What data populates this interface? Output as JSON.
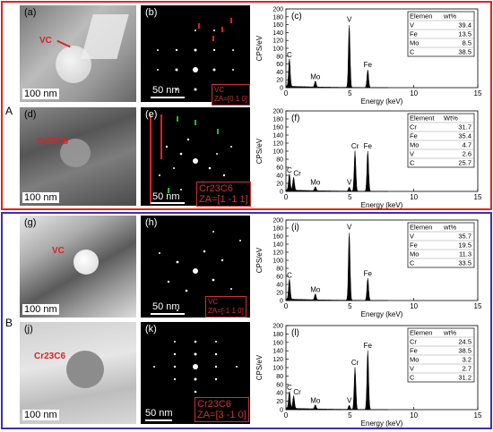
{
  "section_a": {
    "label": "A",
    "border_color": "#e0251d"
  },
  "section_b": {
    "label": "B",
    "border_color": "#3a2fb8"
  },
  "panels": {
    "a": {
      "label": "(a)",
      "phase": "VC",
      "scale": "100 nm"
    },
    "b": {
      "label": "(b)",
      "scale": "50 nm",
      "phase": "VC",
      "za": "ZA=[0 1 0]"
    },
    "d": {
      "label": "(d)",
      "phase": "Cr23C6",
      "scale": "100 nm"
    },
    "e": {
      "label": "(e)",
      "scale": "50 nm",
      "phase": "Cr23C6",
      "za": "ZA=[1 -1 1]"
    },
    "g": {
      "label": "(g)",
      "phase": "VC",
      "scale": "100 nm"
    },
    "h": {
      "label": "(h)",
      "scale": "50 nm",
      "phase": "VC",
      "za": "ZA=[-1 1 0]"
    },
    "j": {
      "label": "(j)",
      "phase": "Cr23C6",
      "scale": "100 nm"
    },
    "k": {
      "label": "(k)",
      "scale": "50 nm",
      "phase": "Cr23C6",
      "za": "ZA=[3 -1 0]"
    }
  },
  "chart_data": [
    {
      "id": "c",
      "label": "(c)",
      "type": "line",
      "xlabel": "Energy (keV)",
      "ylabel": "CPS/eV",
      "xlim": [
        0,
        15
      ],
      "ylim": [
        0,
        200
      ],
      "xticks": [
        0,
        5,
        10,
        15
      ],
      "yticks": [
        0,
        20,
        40,
        60,
        80,
        100,
        120,
        140,
        160,
        180,
        200
      ],
      "peaks": [
        {
          "x": 0.27,
          "y": 70,
          "label": "C"
        },
        {
          "x": 2.3,
          "y": 15,
          "label": "Mo"
        },
        {
          "x": 4.95,
          "y": 160,
          "label": "V"
        },
        {
          "x": 6.4,
          "y": 45,
          "label": "Fe"
        }
      ],
      "table": {
        "headers": [
          "Elemen",
          "wt%"
        ],
        "rows": [
          [
            "V",
            "39.4"
          ],
          [
            "Fe",
            "13.5"
          ],
          [
            "Mo",
            "8.5"
          ],
          [
            "C",
            "38.5"
          ]
        ]
      }
    },
    {
      "id": "f",
      "label": "(f)",
      "type": "line",
      "xlabel": "Energy (keV)",
      "ylabel": "CPS/eV",
      "xlim": [
        0,
        15
      ],
      "ylim": [
        0,
        200
      ],
      "xticks": [
        0,
        5,
        10,
        15
      ],
      "yticks": [
        0,
        20,
        40,
        60,
        80,
        100,
        120,
        140,
        160,
        180,
        200
      ],
      "peaks": [
        {
          "x": 0.27,
          "y": 40,
          "label": "C"
        },
        {
          "x": 0.6,
          "y": 32,
          "label": "Cr"
        },
        {
          "x": 2.3,
          "y": 10,
          "label": "Mo"
        },
        {
          "x": 4.95,
          "y": 10,
          "label": "V"
        },
        {
          "x": 5.4,
          "y": 100,
          "label": "Cr"
        },
        {
          "x": 6.4,
          "y": 100,
          "label": "Fe"
        }
      ],
      "table": {
        "headers": [
          "Element",
          "Wt%"
        ],
        "rows": [
          [
            "Cr",
            "31.7"
          ],
          [
            "Fe",
            "35.4"
          ],
          [
            "Mo",
            "4.7"
          ],
          [
            "V",
            "2.6"
          ],
          [
            "C",
            "25.7"
          ]
        ]
      }
    },
    {
      "id": "i",
      "label": "(i)",
      "type": "line",
      "xlabel": "Energy (keV)",
      "ylabel": "CPS/eV",
      "xlim": [
        0,
        15
      ],
      "ylim": [
        0,
        200
      ],
      "xticks": [
        0,
        5,
        10,
        15
      ],
      "yticks": [
        0,
        20,
        40,
        60,
        80,
        100,
        120,
        140,
        160,
        180,
        200
      ],
      "peaks": [
        {
          "x": 0.27,
          "y": 50,
          "label": "C"
        },
        {
          "x": 2.3,
          "y": 15,
          "label": "Mo"
        },
        {
          "x": 4.95,
          "y": 170,
          "label": "V"
        },
        {
          "x": 6.4,
          "y": 55,
          "label": "Fe"
        }
      ],
      "table": {
        "headers": [
          "Elemen",
          "wt%"
        ],
        "rows": [
          [
            "V",
            "35.7"
          ],
          [
            "Fe",
            "19.5"
          ],
          [
            "Mo",
            "11.3"
          ],
          [
            "C",
            "33.5"
          ]
        ]
      }
    },
    {
      "id": "l",
      "label": "(l)",
      "type": "line",
      "xlabel": "Energy (keV)",
      "ylabel": "CPS/eV",
      "xlim": [
        0,
        15
      ],
      "ylim": [
        0,
        200
      ],
      "xticks": [
        0,
        5,
        10,
        15
      ],
      "yticks": [
        0,
        20,
        40,
        60,
        80,
        100,
        120,
        140,
        160,
        180,
        200
      ],
      "peaks": [
        {
          "x": 0.27,
          "y": 40,
          "label": "C"
        },
        {
          "x": 0.6,
          "y": 30,
          "label": "Cr"
        },
        {
          "x": 2.3,
          "y": 10,
          "label": "Mo"
        },
        {
          "x": 4.95,
          "y": 10,
          "label": "V"
        },
        {
          "x": 5.4,
          "y": 100,
          "label": "Cr"
        },
        {
          "x": 6.4,
          "y": 140,
          "label": "Fe"
        }
      ],
      "table": {
        "headers": [
          "Elemen",
          "wt%"
        ],
        "rows": [
          [
            "Cr",
            "24.5"
          ],
          [
            "Fe",
            "38.5"
          ],
          [
            "Mo",
            "3.2"
          ],
          [
            "V",
            "2.7"
          ],
          [
            "C",
            "31.2"
          ]
        ]
      }
    }
  ]
}
